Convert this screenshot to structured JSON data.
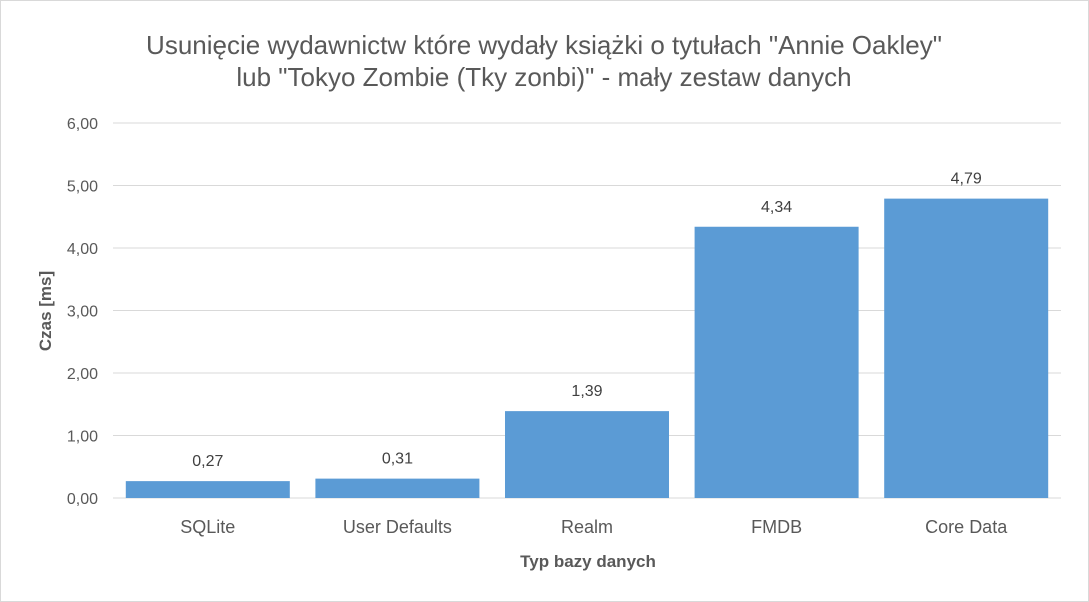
{
  "chart_data": {
    "type": "bar",
    "title_lines": [
      "Usunięcie wydawnictw które wydały książki o tytułach \"Annie Oakley\"",
      "lub \"Tokyo Zombie (Tky zonbi)\" - mały zestaw danych"
    ],
    "xlabel": "Typ bazy danych",
    "ylabel": "Czas [ms]",
    "categories": [
      "SQLite",
      "User Defaults",
      "Realm",
      "FMDB",
      "Core Data"
    ],
    "values": [
      0.27,
      0.31,
      1.39,
      4.34,
      4.79
    ],
    "value_labels": [
      "0,27",
      "0,31",
      "1,39",
      "4,34",
      "4,79"
    ],
    "ylim": [
      0,
      6
    ],
    "yticks": [
      0,
      1,
      2,
      3,
      4,
      5,
      6
    ],
    "ytick_labels": [
      "0,00",
      "1,00",
      "2,00",
      "3,00",
      "4,00",
      "5,00",
      "6,00"
    ],
    "grid": true,
    "legend": "none",
    "bar_color": "#5b9bd5",
    "grid_color": "#d9d9d9"
  }
}
